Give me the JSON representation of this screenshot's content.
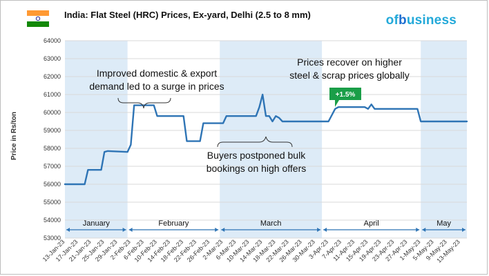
{
  "header": {
    "title": "India: Flat Steel (HRC) Prices, Ex-yard, Delhi (2.5 to 8 mm)",
    "brand_part1": "of",
    "brand_part2": "b",
    "brand_part3": "usiness",
    "flag_colors": [
      "#FF9933",
      "#FFFFFF",
      "#138808"
    ],
    "flag_emblem_color": "#000080"
  },
  "colors": {
    "line": "#2e74b5",
    "shade": "#ddebf7",
    "grid": "#d9d9d9",
    "badge": "#1a9e48",
    "month_band_line": "#2e74b5"
  },
  "chart_data": {
    "type": "line",
    "ylabel": "Price in Rs/ton",
    "ylim": [
      53000,
      64000
    ],
    "yticks": [
      53000,
      54000,
      55000,
      56000,
      57000,
      58000,
      59000,
      60000,
      61000,
      62000,
      63000,
      64000
    ],
    "x_start": "2023-01-13",
    "x_end": "2023-05-15",
    "xticks": [
      "13-Jan-23",
      "17-Jan-23",
      "21-Jan-23",
      "25-Jan-23",
      "29-Jan-23",
      "2-Feb-23",
      "6-Feb-23",
      "10-Feb-23",
      "14-Feb-23",
      "18-Feb-23",
      "22-Feb-23",
      "26-Feb-23",
      "2-Mar-23",
      "6-Mar-23",
      "10-Mar-23",
      "14-Mar-23",
      "18-Mar-23",
      "22-Mar-23",
      "26-Mar-23",
      "30-Mar-23",
      "3-Apr-23",
      "7-Apr-23",
      "11-Apr-23",
      "15-Apr-23",
      "19-Apr-23",
      "23-Apr-23",
      "27-Apr-23",
      "1-May-23",
      "5-May-23",
      "9-May-23",
      "13-May-23"
    ],
    "months": [
      {
        "label": "January",
        "start": "2023-01-13",
        "end": "2023-01-31"
      },
      {
        "label": "February",
        "start": "2023-02-01",
        "end": "2023-02-28"
      },
      {
        "label": "March",
        "start": "2023-03-01",
        "end": "2023-03-31"
      },
      {
        "label": "April",
        "start": "2023-04-01",
        "end": "2023-04-30"
      },
      {
        "label": "May",
        "start": "2023-05-01",
        "end": "2023-05-15"
      }
    ],
    "shaded_months": [
      "January",
      "March",
      "May"
    ],
    "series": [
      {
        "points": [
          [
            "2023-01-13",
            56000
          ],
          [
            "2023-01-19",
            56000
          ],
          [
            "2023-01-20",
            56800
          ],
          [
            "2023-01-24",
            56800
          ],
          [
            "2023-01-25",
            57800
          ],
          [
            "2023-01-26",
            57850
          ],
          [
            "2023-02-01",
            57800
          ],
          [
            "2023-02-02",
            58200
          ],
          [
            "2023-02-03",
            60400
          ],
          [
            "2023-02-09",
            60400
          ],
          [
            "2023-02-10",
            59800
          ],
          [
            "2023-02-18",
            59800
          ],
          [
            "2023-02-19",
            58400
          ],
          [
            "2023-02-23",
            58400
          ],
          [
            "2023-02-24",
            59400
          ],
          [
            "2023-03-02",
            59400
          ],
          [
            "2023-03-03",
            59800
          ],
          [
            "2023-03-12",
            59800
          ],
          [
            "2023-03-13",
            60300
          ],
          [
            "2023-03-14",
            61000
          ],
          [
            "2023-03-15",
            59800
          ],
          [
            "2023-03-16",
            59800
          ],
          [
            "2023-03-17",
            59500
          ],
          [
            "2023-03-18",
            59800
          ],
          [
            "2023-03-19",
            59700
          ],
          [
            "2023-03-20",
            59500
          ],
          [
            "2023-04-03",
            59500
          ],
          [
            "2023-04-05",
            60200
          ],
          [
            "2023-04-06",
            60300
          ],
          [
            "2023-04-14",
            60300
          ],
          [
            "2023-04-15",
            60200
          ],
          [
            "2023-04-16",
            60450
          ],
          [
            "2023-04-17",
            60200
          ],
          [
            "2023-04-30",
            60200
          ],
          [
            "2023-05-01",
            59500
          ],
          [
            "2023-05-15",
            59500
          ]
        ]
      }
    ],
    "annotations": [
      {
        "lines": [
          "Improved domestic & export",
          "demand led to a surge in prices"
        ]
      },
      {
        "lines": [
          "Prices recover on higher",
          "steel & scrap prices globally"
        ]
      },
      {
        "lines": [
          "Buyers postponed bulk",
          "bookings on high offers"
        ]
      }
    ],
    "badge": "+1.5%"
  }
}
